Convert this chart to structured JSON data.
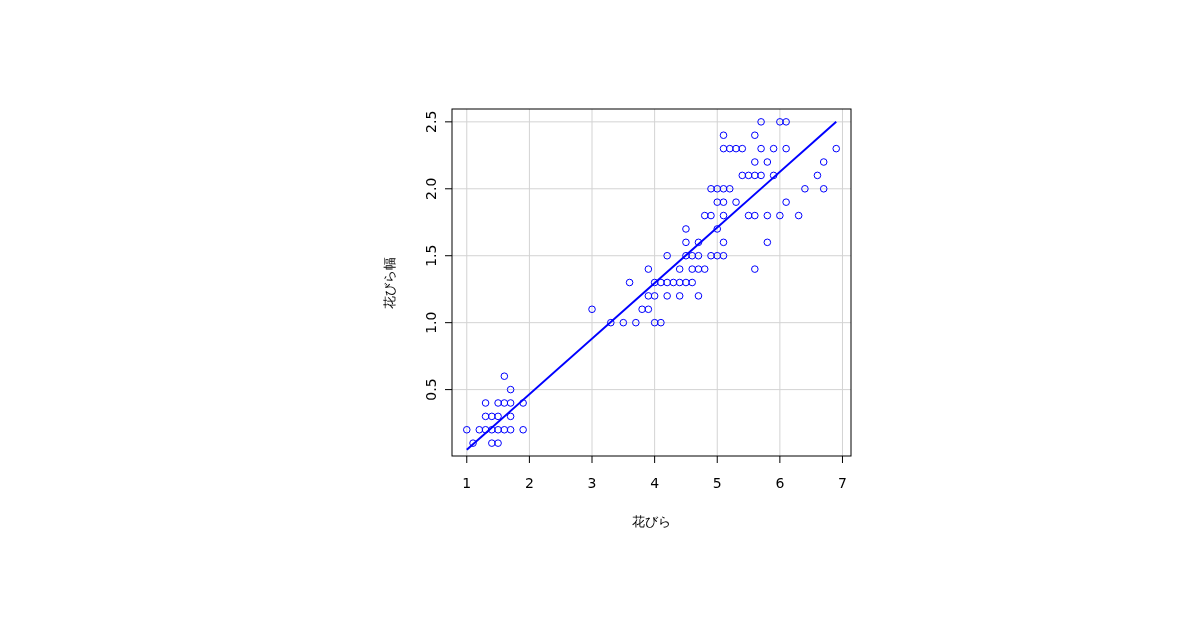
{
  "chart_data": {
    "type": "scatter",
    "xlabel": "花びら",
    "ylabel": "花びら幅",
    "xlim": [
      0.764,
      7.136
    ],
    "ylim": [
      0.004,
      2.596
    ],
    "xticks": [
      1,
      2,
      3,
      4,
      5,
      6,
      7
    ],
    "yticks": [
      0.5,
      {
        "value": 1,
        "label": "1.0"
      },
      1.5,
      {
        "value": 2,
        "label": "2.0"
      },
      2.5
    ],
    "grid": true,
    "marker": "circle",
    "series": [
      {
        "color": "#0000ff",
        "x": [
          1.1,
          1.4,
          1.5,
          1.0,
          1.2,
          1.3,
          1.4,
          1.5,
          1.6,
          1.7,
          1.9,
          1.3,
          1.4,
          1.5,
          1.7,
          1.3,
          1.5,
          1.6,
          1.7,
          1.9,
          1.7,
          1.6,
          3.3,
          3.5,
          3.7,
          4.0,
          4.1,
          3.0,
          3.8,
          3.9,
          3.9,
          4.0,
          4.2,
          4.4,
          4.7,
          3.6,
          4.0,
          4.1,
          4.2,
          4.3,
          4.4,
          4.5,
          4.6,
          3.9,
          4.4,
          4.6,
          4.7,
          4.8,
          5.6,
          4.2,
          4.5,
          4.6,
          4.7,
          4.9,
          5.0,
          5.1,
          4.5,
          4.7,
          5.1,
          5.8,
          4.5,
          5.0,
          4.8,
          4.9,
          5.1,
          5.5,
          5.6,
          5.8,
          6.0,
          6.3,
          5.0,
          5.1,
          5.3,
          6.1,
          4.9,
          5.0,
          5.1,
          5.2,
          6.4,
          6.7,
          5.4,
          5.5,
          5.6,
          5.7,
          5.9,
          6.6,
          5.6,
          5.8,
          6.7,
          5.1,
          5.2,
          5.3,
          5.4,
          5.7,
          5.9,
          6.1,
          6.9,
          5.1,
          5.6,
          5.7,
          6.0,
          6.1
        ],
        "values": [
          0.1,
          0.1,
          0.1,
          0.2,
          0.2,
          0.2,
          0.2,
          0.2,
          0.2,
          0.2,
          0.2,
          0.3,
          0.3,
          0.3,
          0.3,
          0.4,
          0.4,
          0.4,
          0.4,
          0.4,
          0.5,
          0.6,
          1.0,
          1.0,
          1.0,
          1.0,
          1.0,
          1.1,
          1.1,
          1.1,
          1.2,
          1.2,
          1.2,
          1.2,
          1.2,
          1.3,
          1.3,
          1.3,
          1.3,
          1.3,
          1.3,
          1.3,
          1.3,
          1.4,
          1.4,
          1.4,
          1.4,
          1.4,
          1.4,
          1.5,
          1.5,
          1.5,
          1.5,
          1.5,
          1.5,
          1.5,
          1.6,
          1.6,
          1.6,
          1.6,
          1.7,
          1.7,
          1.8,
          1.8,
          1.8,
          1.8,
          1.8,
          1.8,
          1.8,
          1.8,
          1.9,
          1.9,
          1.9,
          1.9,
          2.0,
          2.0,
          2.0,
          2.0,
          2.0,
          2.0,
          2.1,
          2.1,
          2.1,
          2.1,
          2.1,
          2.1,
          2.2,
          2.2,
          2.2,
          2.3,
          2.3,
          2.3,
          2.3,
          2.3,
          2.3,
          2.3,
          2.3,
          2.4,
          2.4,
          2.5,
          2.5,
          2.5
        ]
      },
      {
        "type": "line",
        "color": "#0000ff",
        "marker": "none",
        "x": [
          1.0,
          6.9
        ],
        "values": [
          0.05,
          2.5
        ]
      }
    ]
  }
}
